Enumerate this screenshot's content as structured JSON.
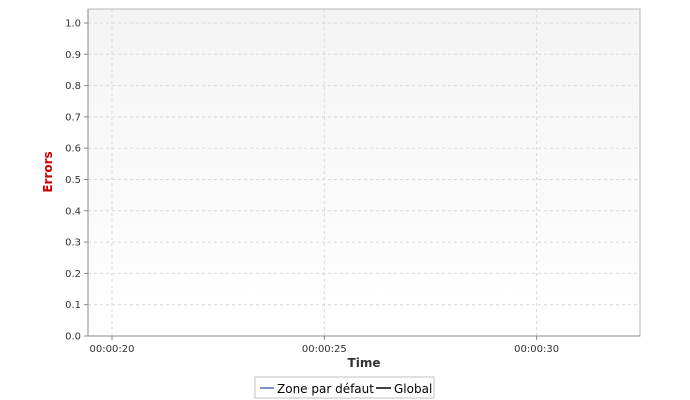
{
  "chart_data": {
    "type": "line",
    "xlabel": "Time",
    "ylabel": "Errors",
    "ylim": [
      0,
      1.0
    ],
    "y_ticks": [
      "0.0",
      "0.1",
      "0.2",
      "0.3",
      "0.4",
      "0.5",
      "0.6",
      "0.7",
      "0.8",
      "0.9",
      "1.0"
    ],
    "x_ticks": [
      "00:00:20",
      "00:00:25",
      "00:00:30"
    ],
    "x_range": [
      "00:00:20",
      "00:00:33"
    ],
    "grid": true,
    "legend_position": "bottom",
    "series": [
      {
        "name": "Zone par défaut",
        "color": "#4a6fb5",
        "values": []
      },
      {
        "name": "Global",
        "color": "#000000",
        "values": []
      }
    ]
  },
  "colors": {
    "ylabel": "#cc0000",
    "xlabel": "#333333"
  }
}
